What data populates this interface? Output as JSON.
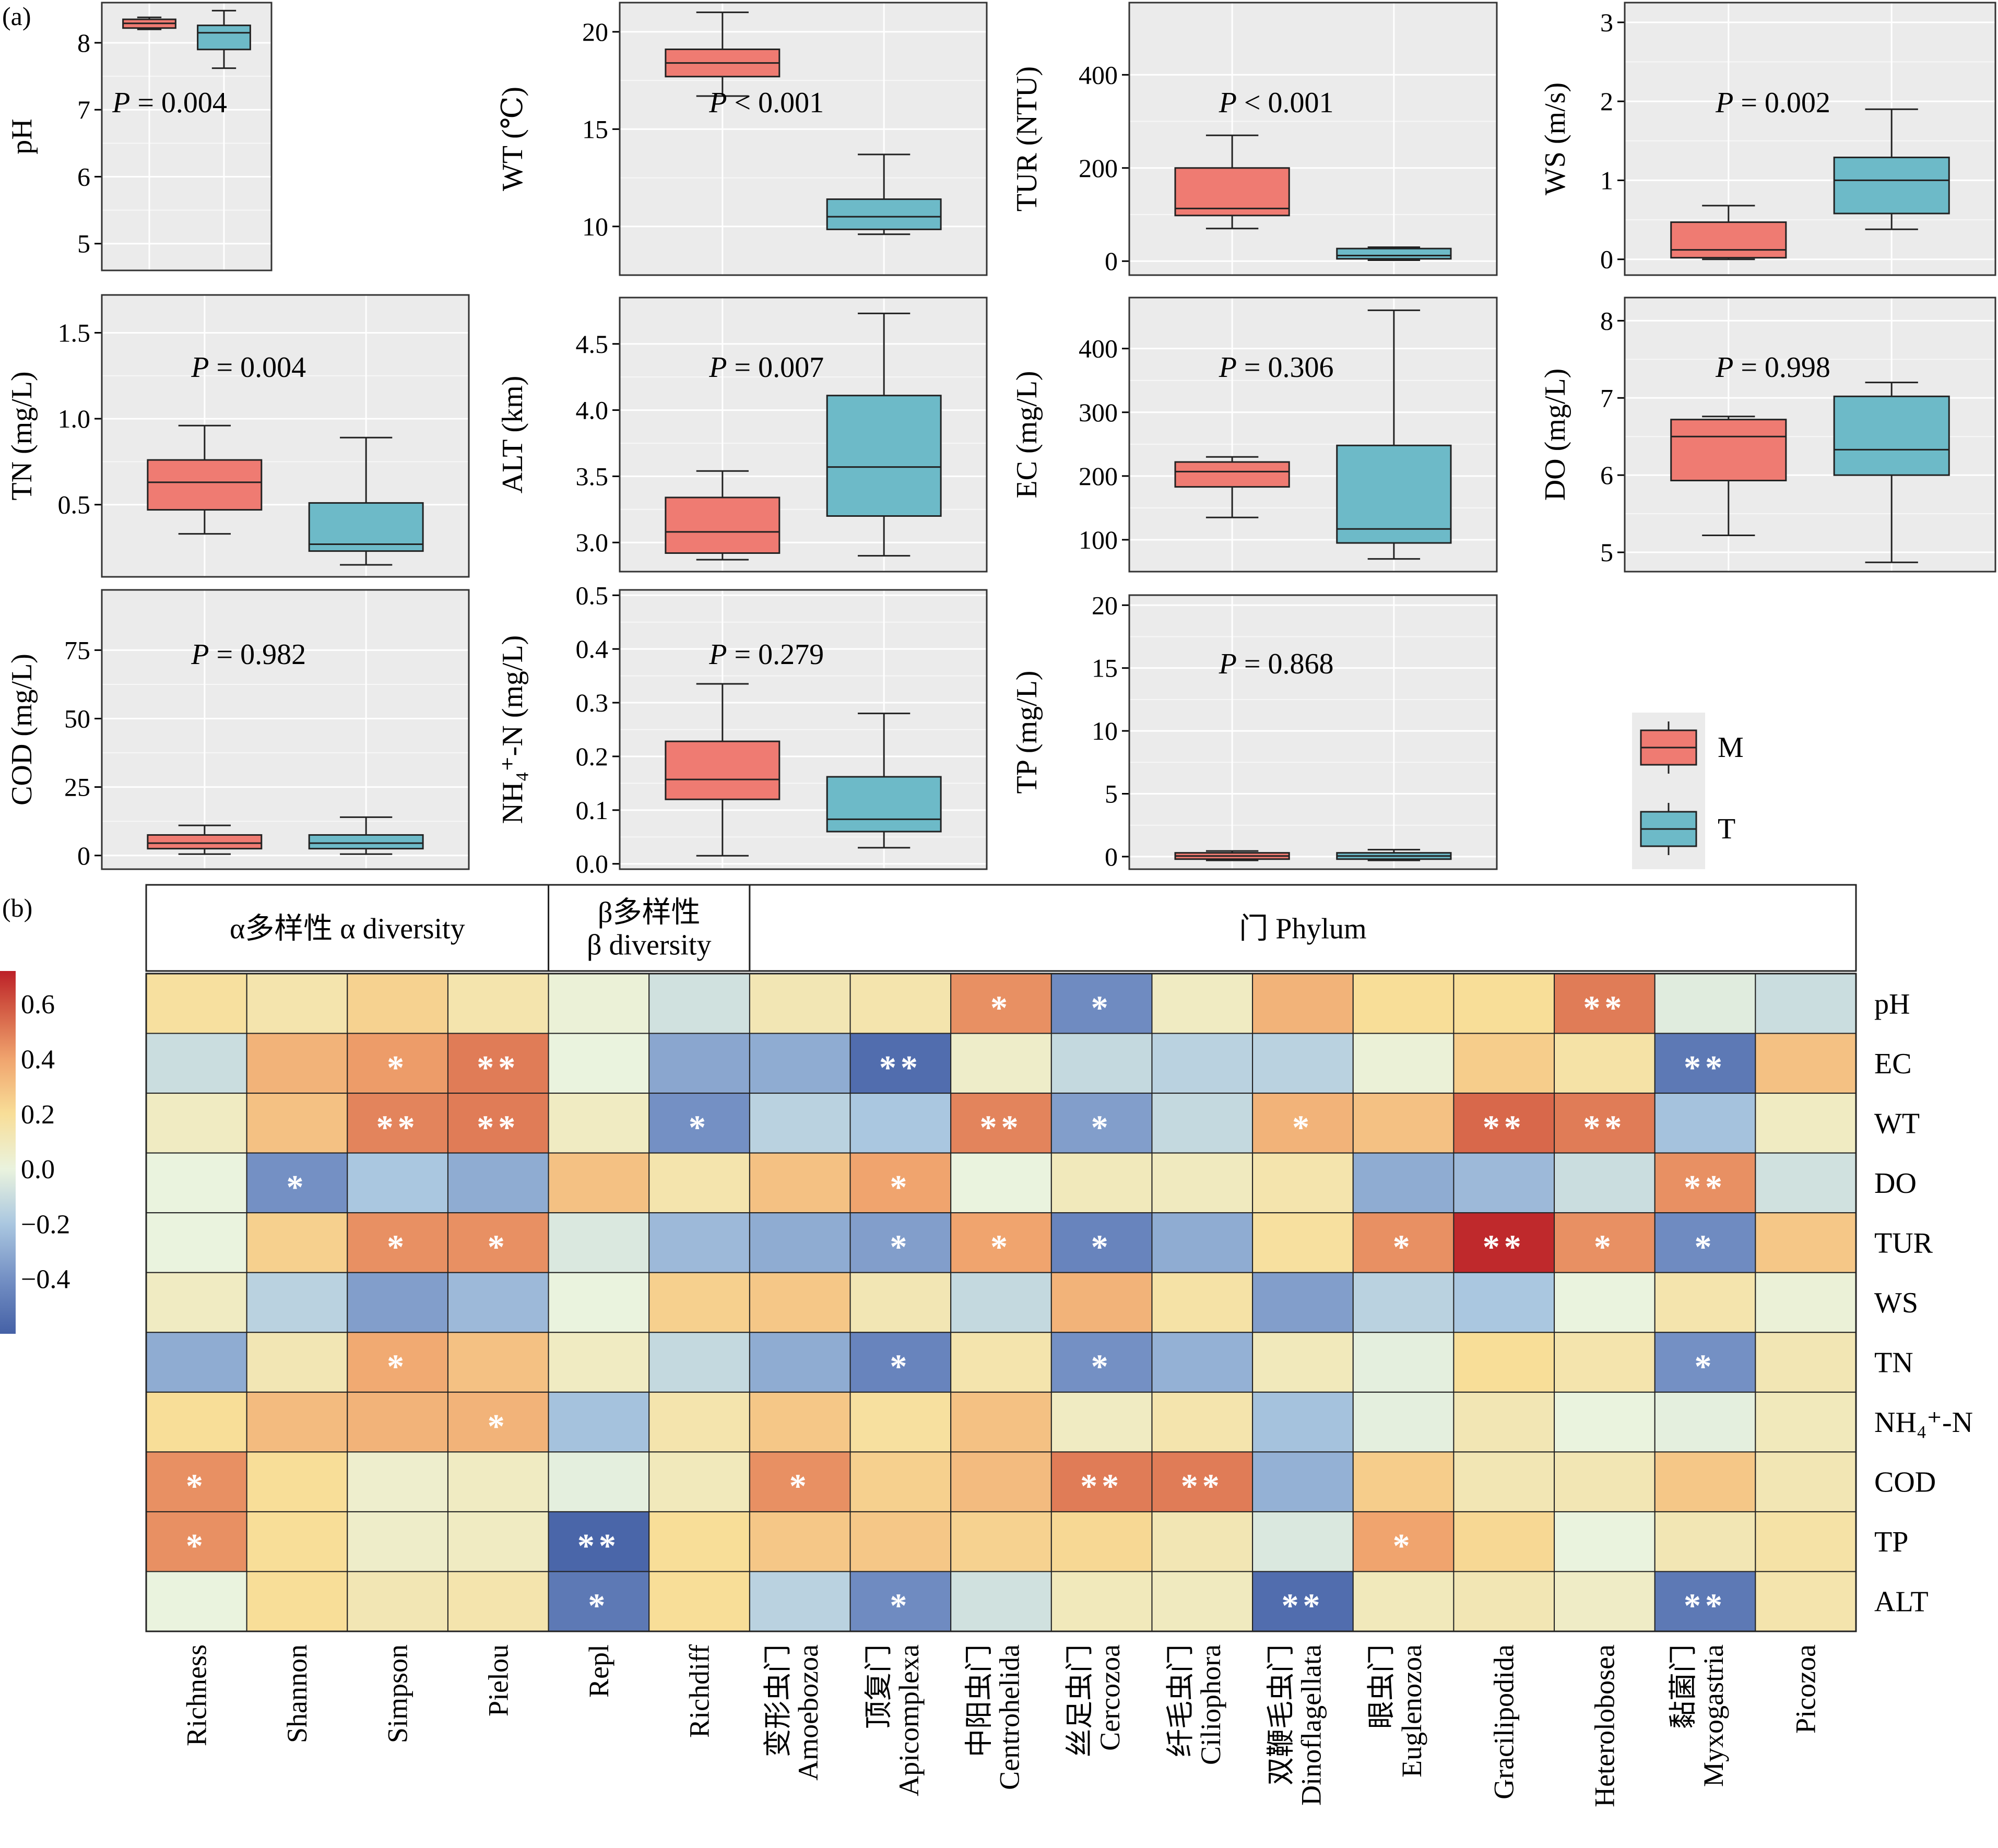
{
  "panel_labels": {
    "a": "(a)",
    "b": "(b)"
  },
  "colors": {
    "M": "#ef7b72",
    "T": "#6dbac8",
    "panel_bg": "#ebebeb",
    "grid": "#ffffff"
  },
  "legend": {
    "M": "M",
    "T": "T"
  },
  "chart_data": [
    {
      "type": "box",
      "ylabel": "pH",
      "p_text": "= 0.004",
      "p_symbol": "P",
      "ylim": [
        4.6,
        8.6
      ],
      "yticks": [
        5,
        6,
        7,
        8
      ],
      "boxes": [
        {
          "group": "M",
          "min": 8.2,
          "q1": 8.22,
          "median": 8.29,
          "q3": 8.35,
          "max": 8.38
        },
        {
          "group": "T",
          "min": 7.62,
          "q1": 7.9,
          "median": 8.15,
          "q3": 8.26,
          "max": 8.48
        }
      ]
    },
    {
      "type": "box",
      "ylabel": "WT (℃)",
      "p_text": "< 0.001",
      "p_symbol": "P",
      "ylim": [
        7.5,
        21.5
      ],
      "yticks": [
        10,
        15,
        20
      ],
      "boxes": [
        {
          "group": "M",
          "min": 16.7,
          "q1": 17.7,
          "median": 18.4,
          "q3": 19.1,
          "max": 21.0
        },
        {
          "group": "T",
          "min": 9.6,
          "q1": 9.85,
          "median": 10.5,
          "q3": 11.4,
          "max": 13.7
        }
      ]
    },
    {
      "type": "box",
      "ylabel": "TUR (NTU)",
      "p_text": "< 0.001",
      "p_symbol": "P",
      "ylim": [
        -30,
        555
      ],
      "yticks": [
        0,
        200,
        400
      ],
      "boxes": [
        {
          "group": "M",
          "min": 70,
          "q1": 98,
          "median": 113,
          "q3": 200,
          "max": 270
        },
        {
          "group": "T",
          "min": 2,
          "q1": 5,
          "median": 12,
          "q3": 27,
          "max": 30
        }
      ]
    },
    {
      "type": "box",
      "ylabel": "WS (m/s)",
      "p_text": "= 0.002",
      "p_symbol": "P",
      "ylim": [
        -0.2,
        3.25
      ],
      "yticks": [
        0,
        1,
        2,
        3
      ],
      "boxes": [
        {
          "group": "M",
          "min": 0.0,
          "q1": 0.02,
          "median": 0.12,
          "q3": 0.47,
          "max": 0.68
        },
        {
          "group": "T",
          "min": 0.38,
          "q1": 0.58,
          "median": 1.0,
          "q3": 1.29,
          "max": 1.9
        }
      ]
    },
    {
      "type": "box",
      "ylabel": "TN (mg/L)",
      "p_text": "= 0.004",
      "p_symbol": "P",
      "ylim": [
        0.08,
        1.72
      ],
      "yticks": [
        0.5,
        1.0,
        1.5
      ],
      "decimals": 1,
      "boxes": [
        {
          "group": "M",
          "min": 0.33,
          "q1": 0.47,
          "median": 0.63,
          "q3": 0.76,
          "max": 0.96
        },
        {
          "group": "T",
          "min": 0.15,
          "q1": 0.23,
          "median": 0.27,
          "q3": 0.51,
          "max": 0.89
        }
      ]
    },
    {
      "type": "box",
      "ylabel": "ALT (km)",
      "p_text": "= 0.007",
      "p_symbol": "P",
      "ylim": [
        2.78,
        4.85
      ],
      "yticks": [
        3.0,
        3.5,
        4.0,
        4.5
      ],
      "decimals": 1,
      "boxes": [
        {
          "group": "M",
          "min": 2.87,
          "q1": 2.92,
          "median": 3.08,
          "q3": 3.34,
          "max": 3.54
        },
        {
          "group": "T",
          "min": 2.9,
          "q1": 3.2,
          "median": 3.57,
          "q3": 4.11,
          "max": 4.73
        }
      ]
    },
    {
      "type": "box",
      "ylabel": "EC (mg/L)",
      "p_text": "= 0.306",
      "p_symbol": "P",
      "ylim": [
        50,
        480
      ],
      "yticks": [
        100,
        200,
        300,
        400
      ],
      "boxes": [
        {
          "group": "M",
          "min": 135,
          "q1": 183,
          "median": 207,
          "q3": 222,
          "max": 230
        },
        {
          "group": "T",
          "min": 70,
          "q1": 95,
          "median": 117,
          "q3": 248,
          "max": 460
        }
      ]
    },
    {
      "type": "box",
      "ylabel": "DO (mg/L)",
      "p_text": "= 0.998",
      "p_symbol": "P",
      "ylim": [
        4.75,
        8.3
      ],
      "yticks": [
        5,
        6,
        7,
        8
      ],
      "boxes": [
        {
          "group": "M",
          "min": 5.22,
          "q1": 5.93,
          "median": 6.5,
          "q3": 6.72,
          "max": 6.76
        },
        {
          "group": "T",
          "min": 4.87,
          "q1": 6.0,
          "median": 6.33,
          "q3": 7.02,
          "max": 7.2
        }
      ]
    },
    {
      "type": "box",
      "ylabel": "COD (mg/L)",
      "p_text": "= 0.982",
      "p_symbol": "P",
      "ylim": [
        -5,
        97
      ],
      "yticks": [
        0,
        25,
        50,
        75
      ],
      "boxes": [
        {
          "group": "M",
          "min": 0.5,
          "q1": 2.5,
          "median": 4.5,
          "q3": 7.5,
          "max": 11
        },
        {
          "group": "T",
          "min": 0.5,
          "q1": 2.5,
          "median": 4.5,
          "q3": 7.5,
          "max": 14
        }
      ]
    },
    {
      "type": "box",
      "ylabel": "NH₄⁺-N (mg/L)",
      "p_text": "= 0.279",
      "p_symbol": "P",
      "ylim": [
        -0.01,
        0.51
      ],
      "yticks": [
        0.0,
        0.1,
        0.2,
        0.3,
        0.4,
        0.5
      ],
      "decimals": 1,
      "boxes": [
        {
          "group": "M",
          "min": 0.015,
          "q1": 0.12,
          "median": 0.157,
          "q3": 0.228,
          "max": 0.335
        },
        {
          "group": "T",
          "min": 0.03,
          "q1": 0.06,
          "median": 0.083,
          "q3": 0.162,
          "max": 0.28
        }
      ]
    },
    {
      "type": "box",
      "ylabel": "TP (mg/L)",
      "p_text": "= 0.868",
      "p_symbol": "P",
      "ylim": [
        -1,
        20.8
      ],
      "yticks": [
        0,
        5,
        10,
        15,
        20
      ],
      "boxes": [
        {
          "group": "M",
          "min": -0.3,
          "q1": -0.2,
          "median": 0.05,
          "q3": 0.3,
          "max": 0.45
        },
        {
          "group": "T",
          "min": -0.3,
          "q1": -0.2,
          "median": 0.05,
          "q3": 0.3,
          "max": 0.55
        }
      ]
    },
    {
      "type": "heatmap",
      "groups": [
        {
          "label_lines": [
            "α多样性 α diversity"
          ],
          "span": 4
        },
        {
          "label_lines": [
            "β多样性",
            "β diversity"
          ],
          "span": 2
        },
        {
          "label_lines": [
            "门 Phylum"
          ],
          "span": 11
        }
      ],
      "columns": [
        {
          "line1": "Richness",
          "line2": ""
        },
        {
          "line1": "Shannon",
          "line2": ""
        },
        {
          "line1": "Simpson",
          "line2": ""
        },
        {
          "line1": "Pielou",
          "line2": ""
        },
        {
          "line1": "Repl",
          "line2": ""
        },
        {
          "line1": "Richdiff",
          "line2": ""
        },
        {
          "line1": "变形虫门",
          "line2": "Amoebozoa"
        },
        {
          "line1": "顶复门",
          "line2": "Apicomplexa"
        },
        {
          "line1": "中阳虫门",
          "line2": "Centrohelida"
        },
        {
          "line1": "丝足虫门",
          "line2": "Cercozoa"
        },
        {
          "line1": "纤毛虫门",
          "line2": "Ciliophora"
        },
        {
          "line1": "双鞭毛虫门",
          "line2": "Dinoflagellata"
        },
        {
          "line1": "眼虫门",
          "line2": "Euglenozoa"
        },
        {
          "line1": "Gracilipodida",
          "line2": ""
        },
        {
          "line1": "Heterolobosea",
          "line2": ""
        },
        {
          "line1": "黏菌门",
          "line2": "Myxogastria"
        },
        {
          "line1": "Picozoa",
          "line2": ""
        }
      ],
      "rows": [
        "pH",
        "EC",
        "WT",
        "DO",
        "TUR",
        "WS",
        "TN",
        "NH₄⁺-N",
        "COD",
        "TP",
        "ALT"
      ],
      "values": [
        [
          0.18,
          0.14,
          0.24,
          0.14,
          0.02,
          -0.08,
          0.12,
          0.14,
          0.45,
          -0.42,
          0.08,
          0.35,
          0.2,
          0.2,
          0.5,
          -0.03,
          -0.1
        ],
        [
          -0.1,
          0.35,
          0.42,
          0.5,
          0.0,
          -0.32,
          -0.3,
          -0.55,
          0.06,
          -0.12,
          -0.15,
          -0.15,
          0.02,
          0.26,
          0.16,
          -0.5,
          0.3
        ],
        [
          0.08,
          0.3,
          0.48,
          0.5,
          0.08,
          -0.4,
          -0.15,
          -0.2,
          0.48,
          -0.35,
          -0.12,
          0.35,
          0.3,
          0.55,
          0.5,
          -0.22,
          0.08
        ],
        [
          0.0,
          -0.4,
          -0.2,
          -0.3,
          0.3,
          0.14,
          0.3,
          0.4,
          0.0,
          0.1,
          0.09,
          0.14,
          -0.3,
          -0.25,
          -0.1,
          0.45,
          -0.08
        ],
        [
          0.0,
          0.25,
          0.45,
          0.45,
          -0.05,
          -0.25,
          -0.3,
          -0.35,
          0.4,
          -0.45,
          -0.3,
          0.18,
          0.45,
          0.7,
          0.45,
          -0.42,
          0.28
        ],
        [
          0.08,
          -0.15,
          -0.35,
          -0.25,
          0.0,
          0.25,
          0.28,
          0.12,
          -0.12,
          0.35,
          0.16,
          -0.35,
          -0.15,
          -0.2,
          0.0,
          0.14,
          0.02
        ],
        [
          -0.3,
          0.12,
          0.38,
          0.3,
          0.08,
          -0.12,
          -0.3,
          -0.45,
          0.14,
          -0.4,
          -0.28,
          0.1,
          -0.02,
          0.2,
          0.14,
          -0.4,
          0.12
        ],
        [
          0.2,
          0.32,
          0.35,
          0.35,
          -0.22,
          0.14,
          0.28,
          0.18,
          0.3,
          0.08,
          0.14,
          -0.22,
          -0.02,
          0.12,
          0.0,
          -0.02,
          0.1
        ],
        [
          0.45,
          0.2,
          0.05,
          0.08,
          -0.02,
          0.1,
          0.45,
          0.25,
          0.32,
          0.5,
          0.5,
          -0.28,
          0.26,
          0.12,
          0.12,
          0.28,
          0.12
        ],
        [
          0.45,
          0.2,
          0.06,
          0.08,
          -0.58,
          0.2,
          0.28,
          0.28,
          0.24,
          0.22,
          0.12,
          -0.05,
          0.4,
          0.22,
          0.0,
          0.12,
          0.16
        ],
        [
          0.0,
          0.2,
          0.12,
          0.14,
          -0.5,
          0.2,
          -0.15,
          -0.42,
          -0.08,
          0.1,
          0.09,
          -0.55,
          0.1,
          0.12,
          0.07,
          -0.5,
          0.14
        ]
      ],
      "significance": [
        [
          "",
          "",
          "",
          "",
          "",
          "",
          "",
          "",
          "*",
          "*",
          "",
          "",
          "",
          "",
          "**",
          "",
          ""
        ],
        [
          "",
          "",
          "*",
          "**",
          "",
          "",
          "",
          "**",
          "",
          "",
          "",
          "",
          "",
          "",
          "",
          "**",
          ""
        ],
        [
          "",
          "",
          "**",
          "**",
          "",
          "*",
          "",
          "",
          "**",
          "*",
          "",
          "*",
          "",
          "**",
          "**",
          "",
          ""
        ],
        [
          "",
          "*",
          "",
          "",
          "",
          "",
          "",
          "*",
          "",
          "",
          "",
          "",
          "",
          "",
          "",
          "**",
          ""
        ],
        [
          "",
          "",
          "*",
          "*",
          "",
          "",
          "",
          "*",
          "*",
          "*",
          "",
          "",
          "*",
          "**",
          "*",
          "*",
          ""
        ],
        [
          "",
          "",
          "",
          "",
          "",
          "",
          "",
          "",
          "",
          "",
          "",
          "",
          "",
          "",
          "",
          "",
          ""
        ],
        [
          "",
          "",
          "*",
          "",
          "",
          "",
          "",
          "*",
          "",
          "*",
          "",
          "",
          "",
          "",
          "",
          "*",
          ""
        ],
        [
          "",
          "",
          "",
          "*",
          "",
          "",
          "",
          "",
          "",
          "",
          "",
          "",
          "",
          "",
          "",
          "",
          ""
        ],
        [
          "*",
          "",
          "",
          "",
          "",
          "",
          "*",
          "",
          "",
          "**",
          "**",
          "",
          "",
          "",
          "",
          "",
          ""
        ],
        [
          "*",
          "",
          "",
          "",
          "**",
          "",
          "",
          "",
          "",
          "",
          "",
          "",
          "*",
          "",
          "",
          "",
          ""
        ],
        [
          "",
          "",
          "",
          "",
          "*",
          "",
          "",
          "*",
          "",
          "",
          "",
          "**",
          "",
          "",
          "",
          "**",
          ""
        ]
      ],
      "colorbar": {
        "min": -0.6,
        "max": 0.72,
        "ticks": [
          0.6,
          0.4,
          0.2,
          0.0,
          -0.2,
          -0.4
        ],
        "tick_labels": [
          "0.6",
          "0.4",
          "0.2",
          "0.0",
          "−0.2",
          "−0.4"
        ]
      }
    }
  ]
}
